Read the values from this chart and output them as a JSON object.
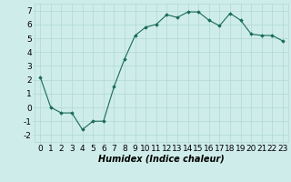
{
  "x": [
    0,
    1,
    2,
    3,
    4,
    5,
    6,
    7,
    8,
    9,
    10,
    11,
    12,
    13,
    14,
    15,
    16,
    17,
    18,
    19,
    20,
    21,
    22,
    23
  ],
  "y": [
    2.2,
    0.0,
    -0.4,
    -0.4,
    -1.6,
    -1.0,
    -1.0,
    1.5,
    3.5,
    5.2,
    5.8,
    6.0,
    6.7,
    6.5,
    6.9,
    6.9,
    6.3,
    5.9,
    6.8,
    6.3,
    5.3,
    5.2,
    5.2,
    4.8
  ],
  "line_color": "#1a6b5a",
  "marker": "D",
  "markersize": 1.8,
  "linewidth": 0.8,
  "xlabel": "Humidex (Indice chaleur)",
  "xlabel_fontsize": 7,
  "xlim": [
    -0.5,
    23.5
  ],
  "ylim": [
    -2.5,
    7.5
  ],
  "yticks": [
    -2,
    -1,
    0,
    1,
    2,
    3,
    4,
    5,
    6,
    7
  ],
  "xticks": [
    0,
    1,
    2,
    3,
    4,
    5,
    6,
    7,
    8,
    9,
    10,
    11,
    12,
    13,
    14,
    15,
    16,
    17,
    18,
    19,
    20,
    21,
    22,
    23
  ],
  "bg_color": "#ceecea",
  "grid_color": "#b0d8d4",
  "tick_fontsize": 6.5
}
